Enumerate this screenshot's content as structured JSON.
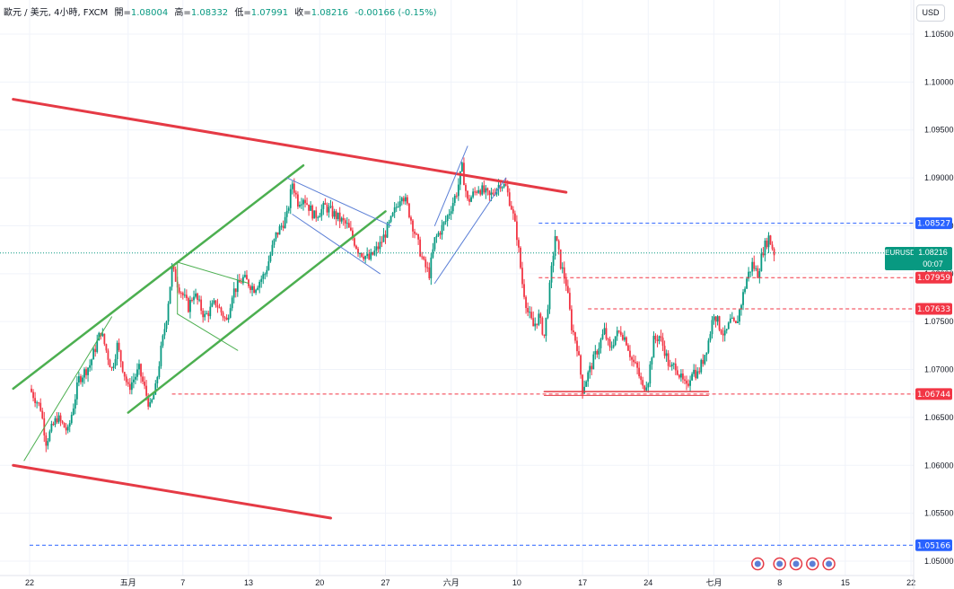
{
  "legend": {
    "title": "歐元 / 美元, 4小時, FXCM",
    "open_label": "開=",
    "open": "1.08004",
    "high_label": "高=",
    "high": "1.08332",
    "low_label": "低=",
    "low": "1.07991",
    "close_label": "收=",
    "close": "1.08216",
    "change": "-0.00166 (-0.15%)"
  },
  "currency_button": "USD",
  "symbol_label": "EURUSD",
  "countdown": "00:07",
  "colors": {
    "up": "#089981",
    "down": "#f23645",
    "trend_red": "#e53a45",
    "channel_green": "#4caf50",
    "blue_level": "#2962ff"
  },
  "chart_data": {
    "type": "candlestick",
    "symbol": "EURUSD",
    "timeframe": "4h",
    "y_axis_ticks": [
      "1.10500",
      "1.10000",
      "1.09500",
      "1.09000",
      "1.08500",
      "1.08000",
      "1.07500",
      "1.07000",
      "1.06500",
      "1.06000",
      "1.05500",
      "1.05000"
    ],
    "ylim": [
      1.0485,
      1.11
    ],
    "x_axis_ticks": [
      {
        "label": "22",
        "t": 0
      },
      {
        "label": "五月",
        "t": 18
      },
      {
        "label": "7",
        "t": 28
      },
      {
        "label": "13",
        "t": 40
      },
      {
        "label": "20",
        "t": 53
      },
      {
        "label": "27",
        "t": 65
      },
      {
        "label": "六月",
        "t": 77
      },
      {
        "label": "10",
        "t": 89
      },
      {
        "label": "17",
        "t": 101
      },
      {
        "label": "24",
        "t": 113
      },
      {
        "label": "七月",
        "t": 125
      },
      {
        "label": "8",
        "t": 137
      },
      {
        "label": "15",
        "t": 149
      },
      {
        "label": "22",
        "t": 161
      }
    ],
    "price_levels": [
      {
        "price": 1.08527,
        "label": "1.08527",
        "color": "#2962ff",
        "from_t": 93
      },
      {
        "price": 1.07959,
        "label": "1.07959",
        "color": "#f23645",
        "from_t": 93
      },
      {
        "price": 1.07633,
        "label": "1.07633",
        "color": "#f23645",
        "from_t": 102
      },
      {
        "price": 1.06744,
        "label": "1.06744",
        "color": "#f23645",
        "from_t": 26
      },
      {
        "price": 1.05166,
        "label": "1.05166",
        "color": "#2962ff",
        "from_t": 0
      }
    ],
    "last_price": {
      "price": 1.08216,
      "label": "1.08216"
    },
    "path": [
      [
        0,
        1.068
      ],
      [
        2,
        1.066
      ],
      [
        3,
        1.0625
      ],
      [
        5,
        1.065
      ],
      [
        7,
        1.0635
      ],
      [
        9,
        1.069
      ],
      [
        11,
        1.0705
      ],
      [
        13,
        1.074
      ],
      [
        15,
        1.07
      ],
      [
        16,
        1.0725
      ],
      [
        18,
        1.068
      ],
      [
        20,
        1.07
      ],
      [
        22,
        1.066
      ],
      [
        23,
        1.068
      ],
      [
        24,
        1.072
      ],
      [
        25,
        1.0755
      ],
      [
        26,
        1.0805
      ],
      [
        27,
        1.079
      ],
      [
        29,
        1.0765
      ],
      [
        30,
        1.078
      ],
      [
        32,
        1.0755
      ],
      [
        34,
        1.077
      ],
      [
        36,
        1.075
      ],
      [
        37,
        1.078
      ],
      [
        39,
        1.0795
      ],
      [
        41,
        1.0785
      ],
      [
        43,
        1.08
      ],
      [
        45,
        1.084
      ],
      [
        47,
        1.086
      ],
      [
        48,
        1.0895
      ],
      [
        49,
        1.0875
      ],
      [
        50,
        1.088
      ],
      [
        52,
        1.086
      ],
      [
        54,
        1.087
      ],
      [
        56,
        1.086
      ],
      [
        58,
        1.085
      ],
      [
        60,
        1.0825
      ],
      [
        62,
        1.0815
      ],
      [
        64,
        1.083
      ],
      [
        66,
        1.0855
      ],
      [
        67,
        1.087
      ],
      [
        68,
        1.0885
      ],
      [
        69,
        1.087
      ],
      [
        70,
        1.085
      ],
      [
        71,
        1.083
      ],
      [
        72,
        1.081
      ],
      [
        73,
        1.08
      ],
      [
        74,
        1.0835
      ],
      [
        76,
        1.0855
      ],
      [
        78,
        1.0885
      ],
      [
        79,
        1.091
      ],
      [
        80,
        1.0875
      ],
      [
        82,
        1.089
      ],
      [
        84,
        1.088
      ],
      [
        86,
        1.0895
      ],
      [
        87,
        1.089
      ],
      [
        88,
        1.087
      ],
      [
        89,
        1.084
      ],
      [
        90,
        1.079
      ],
      [
        91,
        1.076
      ],
      [
        92,
        1.0745
      ],
      [
        93,
        1.0755
      ],
      [
        94,
        1.0735
      ],
      [
        95,
        1.0785
      ],
      [
        96,
        1.084
      ],
      [
        97,
        1.081
      ],
      [
        98,
        1.079
      ],
      [
        99,
        1.0745
      ],
      [
        100,
        1.0725
      ],
      [
        101,
        1.068
      ],
      [
        102,
        1.0695
      ],
      [
        103,
        1.071
      ],
      [
        104,
        1.0725
      ],
      [
        105,
        1.074
      ],
      [
        106,
        1.072
      ],
      [
        107,
        1.0735
      ],
      [
        108,
        1.074
      ],
      [
        109,
        1.073
      ],
      [
        110,
        1.071
      ],
      [
        111,
        1.07
      ],
      [
        112,
        1.068
      ],
      [
        113,
        1.069
      ],
      [
        114,
        1.073
      ],
      [
        115,
        1.0735
      ],
      [
        116,
        1.072
      ],
      [
        117,
        1.07
      ],
      [
        118,
        1.0705
      ],
      [
        119,
        1.069
      ],
      [
        120,
        1.068
      ],
      [
        121,
        1.07
      ],
      [
        122,
        1.0695
      ],
      [
        123,
        1.071
      ],
      [
        124,
        1.073
      ],
      [
        125,
        1.076
      ],
      [
        126,
        1.0745
      ],
      [
        127,
        1.0735
      ],
      [
        128,
        1.075
      ],
      [
        129,
        1.0745
      ],
      [
        130,
        1.077
      ],
      [
        131,
        1.0795
      ],
      [
        132,
        1.081
      ],
      [
        133,
        1.08
      ],
      [
        134,
        1.0825
      ],
      [
        135,
        1.0838
      ],
      [
        136,
        1.0822
      ]
    ],
    "drawings": [
      {
        "kind": "trend",
        "color": "#e53a45",
        "width": 3,
        "p1": [
          -3,
          1.0982
        ],
        "p2": [
          98,
          1.0885
        ]
      },
      {
        "kind": "trend",
        "color": "#e53a45",
        "width": 3,
        "p1": [
          -3,
          1.06
        ],
        "p2": [
          55,
          1.0545
        ]
      },
      {
        "kind": "trend",
        "color": "#4caf50",
        "width": 2.5,
        "p1": [
          -3,
          1.068
        ],
        "p2": [
          50,
          1.0913
        ]
      },
      {
        "kind": "trend",
        "color": "#4caf50",
        "width": 2.5,
        "p1": [
          18,
          1.0655
        ],
        "p2": [
          65,
          1.0865
        ]
      },
      {
        "kind": "trend",
        "color": "#4caf50",
        "width": 1,
        "p1": [
          -1,
          1.0605
        ],
        "p2": [
          15,
          1.0755
        ]
      },
      {
        "kind": "trend",
        "color": "#4caf50",
        "width": 1,
        "p1": [
          27,
          1.0812
        ],
        "p2": [
          40,
          1.079
        ]
      },
      {
        "kind": "trend",
        "color": "#4caf50",
        "width": 1,
        "p1": [
          27,
          1.0758
        ],
        "p2": [
          38,
          1.072
        ]
      },
      {
        "kind": "trend",
        "color": "#4caf50",
        "width": 1,
        "p1": [
          27,
          1.0812
        ],
        "p2": [
          27,
          1.0758
        ]
      },
      {
        "kind": "trend",
        "color": "#5b7fd6",
        "width": 1,
        "p1": [
          47,
          1.09
        ],
        "p2": [
          66,
          1.085
        ]
      },
      {
        "kind": "trend",
        "color": "#5b7fd6",
        "width": 1,
        "p1": [
          48,
          1.0862
        ],
        "p2": [
          64,
          1.08
        ]
      },
      {
        "kind": "trend",
        "color": "#5b7fd6",
        "width": 1,
        "p1": [
          74,
          1.085
        ],
        "p2": [
          80,
          1.0933
        ]
      },
      {
        "kind": "trend",
        "color": "#5b7fd6",
        "width": 1,
        "p1": [
          74,
          1.079
        ],
        "p2": [
          87,
          1.09
        ]
      },
      {
        "kind": "trend",
        "color": "#e53a45",
        "width": 1.5,
        "p1": [
          94,
          1.0677
        ],
        "p2": [
          124,
          1.0677
        ]
      },
      {
        "kind": "trend",
        "color": "#e53a45",
        "width": 1,
        "p1": [
          94,
          1.0673
        ],
        "p2": [
          124,
          1.0673
        ]
      }
    ]
  }
}
